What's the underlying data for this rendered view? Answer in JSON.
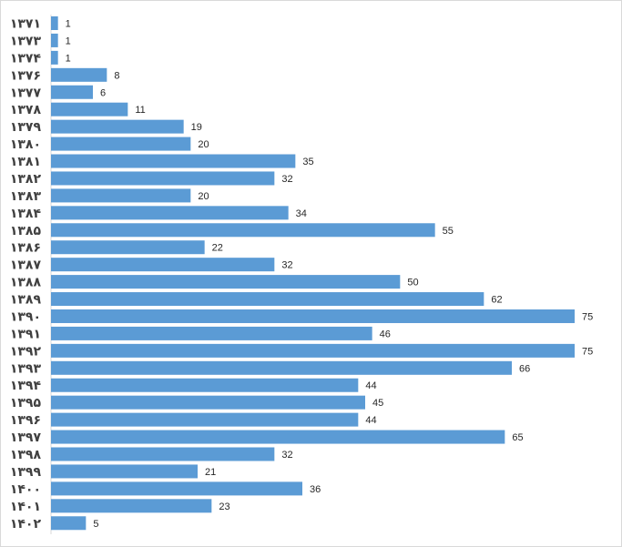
{
  "chart_data": {
    "type": "bar",
    "orientation": "horizontal",
    "categories": [
      "۱۳۷۱",
      "۱۳۷۳",
      "۱۳۷۴",
      "۱۳۷۶",
      "۱۳۷۷",
      "۱۳۷۸",
      "۱۳۷۹",
      "۱۳۸۰",
      "۱۳۸۱",
      "۱۳۸۲",
      "۱۳۸۳",
      "۱۳۸۴",
      "۱۳۸۵",
      "۱۳۸۶",
      "۱۳۸۷",
      "۱۳۸۸",
      "۱۳۸۹",
      "۱۳۹۰",
      "۱۳۹۱",
      "۱۳۹۲",
      "۱۳۹۳",
      "۱۳۹۴",
      "۱۳۹۵",
      "۱۳۹۶",
      "۱۳۹۷",
      "۱۳۹۸",
      "۱۳۹۹",
      "۱۴۰۰",
      "۱۴۰۱",
      "۱۴۰۲"
    ],
    "values": [
      1,
      1,
      1,
      8,
      6,
      11,
      19,
      20,
      35,
      32,
      20,
      34,
      55,
      22,
      32,
      50,
      62,
      75,
      46,
      75,
      66,
      44,
      45,
      44,
      65,
      32,
      21,
      36,
      23,
      5
    ],
    "title": "",
    "xlabel": "",
    "ylabel": "",
    "xlim": [
      0,
      75
    ],
    "grid": false,
    "legend": false,
    "data_labels": true,
    "bar_color": "#5b9bd5",
    "axis_color": "#d9d9d9",
    "label_color": "#404040"
  }
}
